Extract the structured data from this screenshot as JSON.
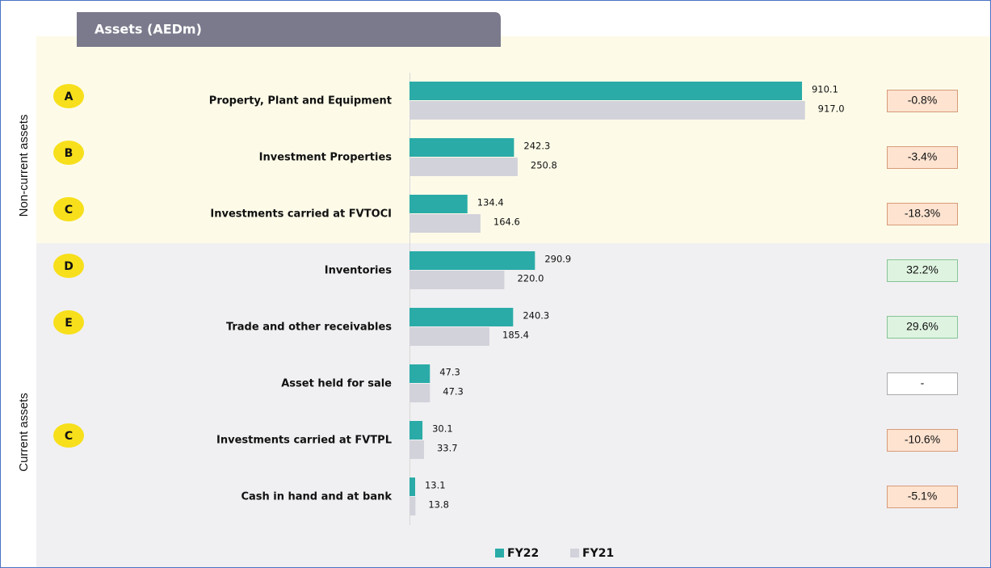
{
  "chart_data": {
    "type": "bar",
    "orientation": "horizontal",
    "title": "Assets (AEDm)",
    "sections": [
      "Non-current assets",
      "Current assets"
    ],
    "categories": [
      "Property, Plant and Equipment",
      "Investment Properties",
      "Investments carried at FVTOCI",
      "Inventories",
      "Trade and other receivables",
      "Asset held for sale",
      "Investments carried at FVTPL",
      "Cash in hand and at bank"
    ],
    "badges": [
      "A",
      "B",
      "C",
      "D",
      "E",
      null,
      "C",
      null
    ],
    "changes": [
      "-0.8%",
      "-3.4%",
      "-18.3%",
      "32.2%",
      "29.6%",
      "-",
      "-10.6%",
      "-5.1%"
    ],
    "series": [
      {
        "name": "FY22",
        "color": "#2aaba7",
        "values": [
          910.1,
          242.3,
          134.4,
          290.9,
          240.3,
          47.3,
          30.1,
          13.1
        ],
        "value_labels": [
          "910.1",
          "242.3",
          "134.4",
          "290.9",
          "240.3",
          "47.3",
          "30.1",
          "13.1"
        ]
      },
      {
        "name": "FY21",
        "color": "#d2d2db",
        "values": [
          917.0,
          250.8,
          164.6,
          220.0,
          185.4,
          47.3,
          33.7,
          13.8
        ],
        "value_labels": [
          "917.0",
          "250.8",
          "164.6",
          "220.0",
          "185.4",
          "47.3",
          "33.7",
          "13.8"
        ]
      }
    ],
    "xlim": [
      0,
      1000
    ],
    "legend": "bottom"
  }
}
